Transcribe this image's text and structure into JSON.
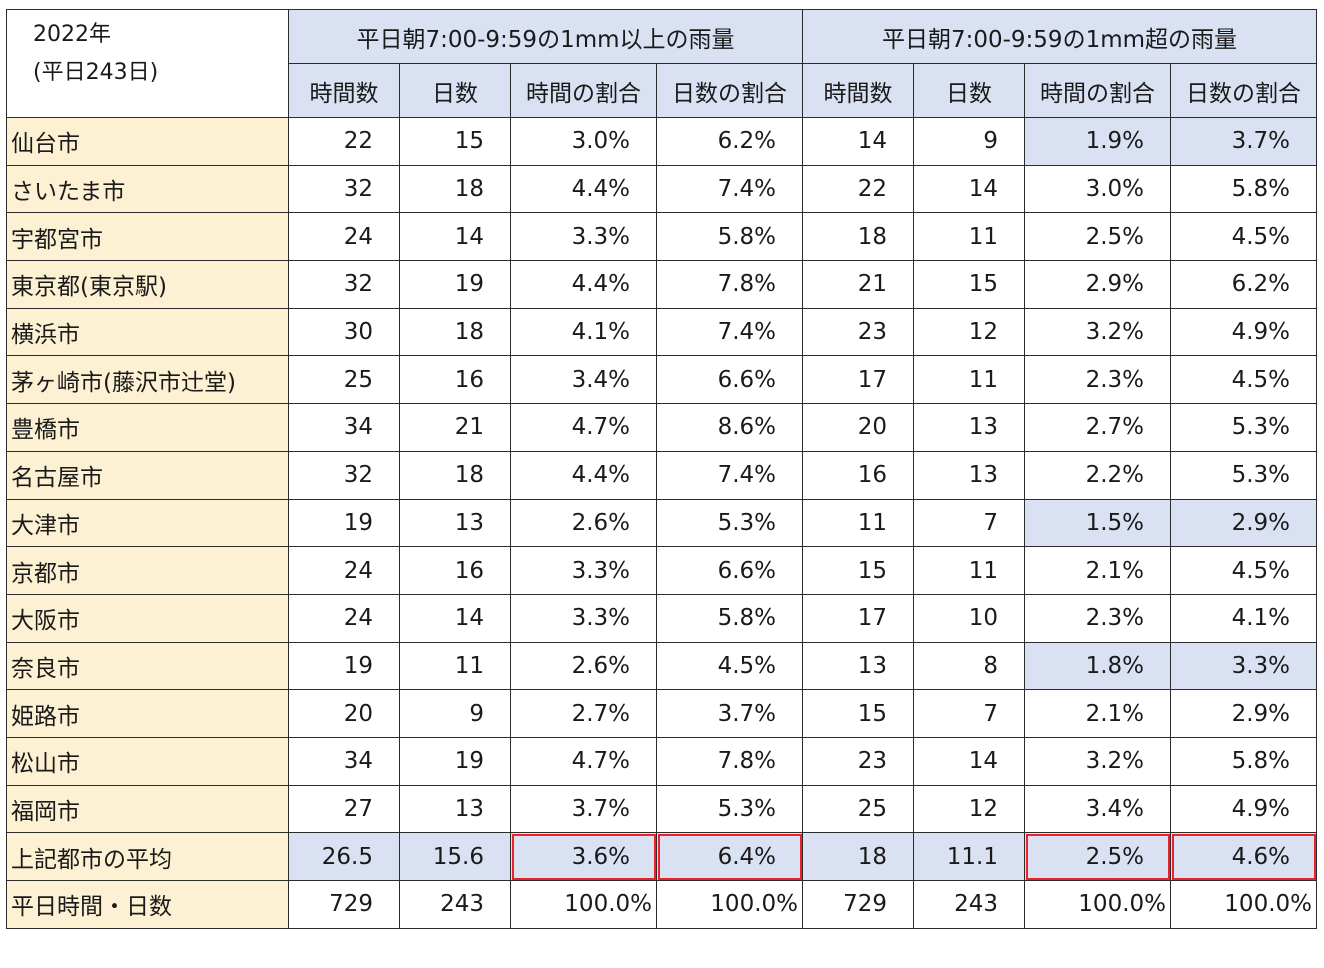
{
  "corner": {
    "line1": "2022年",
    "line2": "(平日243日)"
  },
  "groups": [
    "平日朝7:00-9:59の1mm以上の雨量",
    "平日朝7:00-9:59の1mm超の雨量"
  ],
  "subheaders": [
    "時間数",
    "日数",
    "時間の割合",
    "日数の割合",
    "時間数",
    "日数",
    "時間の割合",
    "日数の割合"
  ],
  "rows": [
    {
      "city": "仙台市",
      "v": [
        "22",
        "15",
        "3.0%",
        "6.2%",
        "14",
        "9",
        "1.9%",
        "3.7%"
      ]
    },
    {
      "city": "さいたま市",
      "v": [
        "32",
        "18",
        "4.4%",
        "7.4%",
        "22",
        "14",
        "3.0%",
        "5.8%"
      ]
    },
    {
      "city": "宇都宮市",
      "v": [
        "24",
        "14",
        "3.3%",
        "5.8%",
        "18",
        "11",
        "2.5%",
        "4.5%"
      ]
    },
    {
      "city": "東京都(東京駅)",
      "v": [
        "32",
        "19",
        "4.4%",
        "7.8%",
        "21",
        "15",
        "2.9%",
        "6.2%"
      ]
    },
    {
      "city": "横浜市",
      "v": [
        "30",
        "18",
        "4.1%",
        "7.4%",
        "23",
        "12",
        "3.2%",
        "4.9%"
      ]
    },
    {
      "city": "茅ヶ崎市(藤沢市辻堂)",
      "v": [
        "25",
        "16",
        "3.4%",
        "6.6%",
        "17",
        "11",
        "2.3%",
        "4.5%"
      ]
    },
    {
      "city": "豊橋市",
      "v": [
        "34",
        "21",
        "4.7%",
        "8.6%",
        "20",
        "13",
        "2.7%",
        "5.3%"
      ]
    },
    {
      "city": "名古屋市",
      "v": [
        "32",
        "18",
        "4.4%",
        "7.4%",
        "16",
        "13",
        "2.2%",
        "5.3%"
      ]
    },
    {
      "city": "大津市",
      "v": [
        "19",
        "13",
        "2.6%",
        "5.3%",
        "11",
        "7",
        "1.5%",
        "2.9%"
      ]
    },
    {
      "city": "京都市",
      "v": [
        "24",
        "16",
        "3.3%",
        "6.6%",
        "15",
        "11",
        "2.1%",
        "4.5%"
      ]
    },
    {
      "city": "大阪市",
      "v": [
        "24",
        "14",
        "3.3%",
        "5.8%",
        "17",
        "10",
        "2.3%",
        "4.1%"
      ]
    },
    {
      "city": "奈良市",
      "v": [
        "19",
        "11",
        "2.6%",
        "4.5%",
        "13",
        "8",
        "1.8%",
        "3.3%"
      ]
    },
    {
      "city": "姫路市",
      "v": [
        "20",
        "9",
        "2.7%",
        "3.7%",
        "15",
        "7",
        "2.1%",
        "2.9%"
      ]
    },
    {
      "city": "松山市",
      "v": [
        "34",
        "19",
        "4.7%",
        "7.8%",
        "23",
        "14",
        "3.2%",
        "5.8%"
      ]
    },
    {
      "city": "福岡市",
      "v": [
        "27",
        "13",
        "3.7%",
        "5.3%",
        "25",
        "12",
        "3.4%",
        "4.9%"
      ]
    }
  ],
  "average": {
    "city": "上記都市の平均",
    "v": [
      "26.5",
      "15.6",
      "3.6%",
      "6.4%",
      "18",
      "11.1",
      "2.5%",
      "4.6%"
    ]
  },
  "totals": {
    "city": "平日時間・日数",
    "v": [
      "729",
      "243",
      "100.0%",
      "100.0%",
      "729",
      "243",
      "100.0%",
      "100.0%"
    ]
  },
  "colors": {
    "header_fill": "#dae1f2",
    "city_fill": "#fdf1d4",
    "highlight_outline": "#e8232b"
  }
}
